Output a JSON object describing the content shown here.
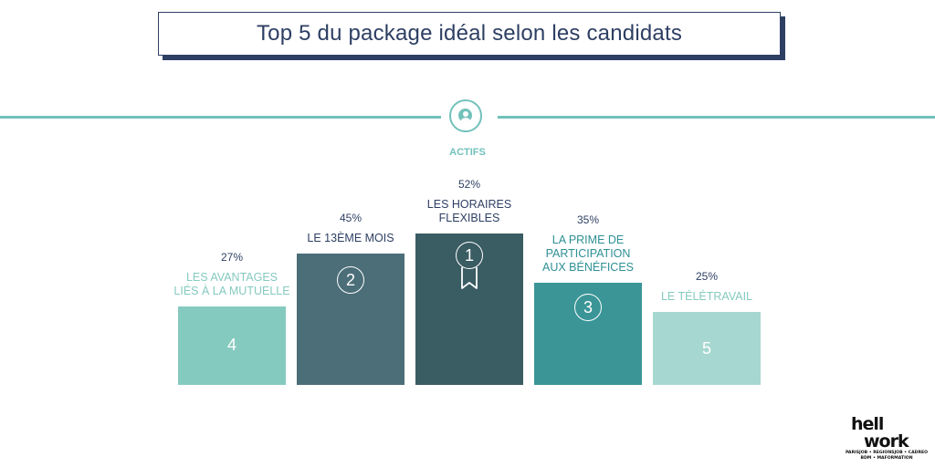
{
  "title": "Top 5 du package idéal selon les candidats",
  "group_label": "ACTIFS",
  "chart_data": {
    "type": "bar",
    "categories": [
      "LES AVANTAGES LIÉS À LA MUTUELLE",
      "LE 13ÈME MOIS",
      "LES HORAIRES FLEXIBLES",
      "LA PRIME DE PARTICIPATION AUX BÉNÉFICES",
      "LE TÉLÉTRAVAIL"
    ],
    "label_lines": [
      [
        "LES AVANTAGES",
        "LIÉS À LA MUTUELLE"
      ],
      [
        "LE 13ÈME MOIS"
      ],
      [
        "LES HORAIRES",
        "FLEXIBLES"
      ],
      [
        "LA PRIME DE",
        "PARTICIPATION",
        "AUX BÉNÉFICES"
      ],
      [
        "LE TÉLÉTRAVAIL"
      ]
    ],
    "values": [
      27,
      45,
      52,
      35,
      25
    ],
    "value_labels": [
      "27%",
      "45%",
      "52%",
      "35%",
      "25%"
    ],
    "ranks": [
      "4",
      "2",
      "1",
      "3",
      "5"
    ],
    "colors": [
      "#85cabf",
      "#4b6e78",
      "#3a5c63",
      "#3b9597",
      "#a6d7d0"
    ],
    "label_colors": [
      "#85cabf",
      "#2d3f63",
      "#2d3f63",
      "#2e8f94",
      "#85cabf"
    ],
    "rank_styles": [
      "plain",
      "circle",
      "medal",
      "circle",
      "plain"
    ],
    "ylim": [
      0,
      55
    ]
  },
  "logo": {
    "line1": "hell",
    "line2": "work",
    "sub1": "PARISJOB • REGIONSJOB • CADREO",
    "sub2": "BDM • MAFORMATION"
  }
}
